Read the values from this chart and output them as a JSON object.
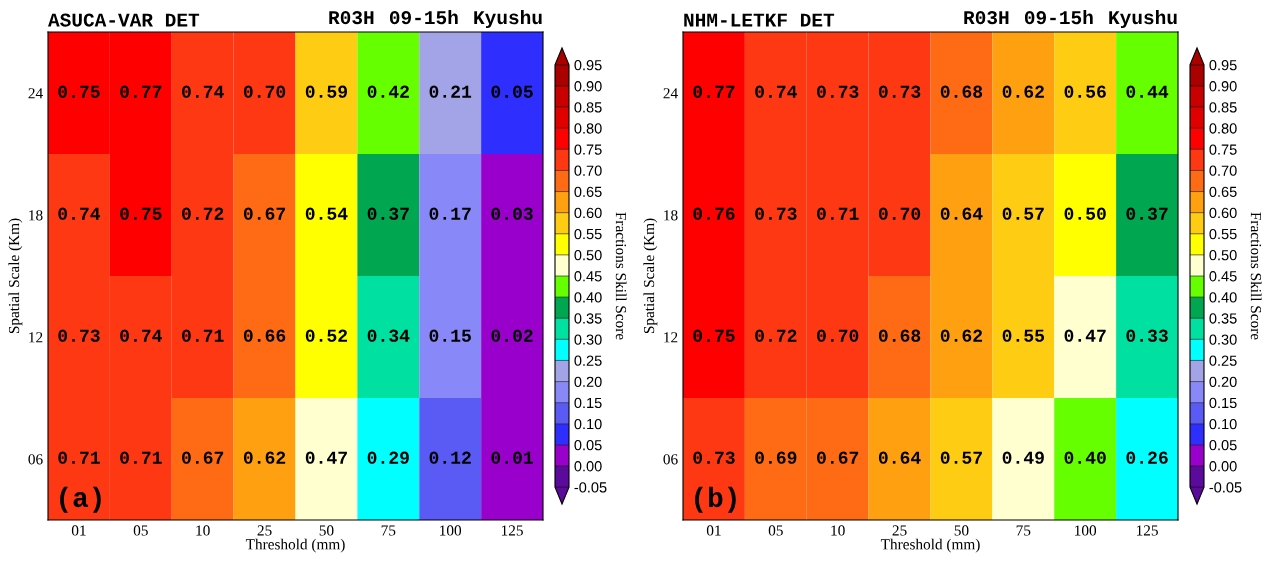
{
  "chart_data": [
    {
      "type": "heatmap",
      "title": "ASUCA-VAR DET",
      "annotations": [
        "R03H",
        "09-15h",
        "Kyushu",
        "(a)"
      ],
      "xlabel": "Threshold (mm)",
      "ylabel": "Spatial Scale (Km)",
      "clabel": "Fractions Skill Score",
      "categories": [
        "01",
        "05",
        "10",
        "25",
        "50",
        "75",
        "100",
        "125"
      ],
      "y_categories": [
        "24",
        "18",
        "12",
        "06"
      ],
      "cells": [
        [
          0.75,
          0.77,
          0.74,
          0.7,
          0.59,
          0.42,
          0.21,
          0.05
        ],
        [
          0.74,
          0.75,
          0.72,
          0.67,
          0.54,
          0.37,
          0.17,
          0.03
        ],
        [
          0.73,
          0.74,
          0.71,
          0.66,
          0.52,
          0.34,
          0.15,
          0.02
        ],
        [
          0.71,
          0.71,
          0.67,
          0.62,
          0.47,
          0.29,
          0.12,
          0.01
        ]
      ],
      "cell_labels": [
        [
          "0.75",
          "0.77",
          "0.74",
          "0.70",
          "0.59",
          "0.42",
          "0.21",
          "0.05"
        ],
        [
          "0.74",
          "0.75",
          "0.72",
          "0.67",
          "0.54",
          "0.37",
          "0.17",
          "0.03"
        ],
        [
          "0.73",
          "0.74",
          "0.71",
          "0.66",
          "0.52",
          "0.34",
          "0.15",
          "0.02"
        ],
        [
          "0.71",
          "0.71",
          "0.67",
          "0.62",
          "0.47",
          "0.29",
          "0.12",
          "0.01"
        ]
      ],
      "clim": [
        -0.05,
        0.95
      ],
      "cticks": [
        {
          "value": -0.05,
          "label": "-0.05"
        },
        {
          "value": 0.0,
          "label": "0.00"
        },
        {
          "value": 0.05,
          "label": "0.05"
        },
        {
          "value": 0.1,
          "label": "0.10"
        },
        {
          "value": 0.15,
          "label": "0.15"
        },
        {
          "value": 0.2,
          "label": "0.20"
        },
        {
          "value": 0.25,
          "label": "0.25"
        },
        {
          "value": 0.3,
          "label": "0.30"
        },
        {
          "value": 0.35,
          "label": "0.35"
        },
        {
          "value": 0.4,
          "label": "0.40"
        },
        {
          "value": 0.45,
          "label": "0.45"
        },
        {
          "value": 0.5,
          "label": "0.50"
        },
        {
          "value": 0.55,
          "label": "0.55"
        },
        {
          "value": 0.6,
          "label": "0.60"
        },
        {
          "value": 0.65,
          "label": "0.65"
        },
        {
          "value": 0.7,
          "label": "0.70"
        },
        {
          "value": 0.75,
          "label": "0.75"
        },
        {
          "value": 0.8,
          "label": "0.80"
        },
        {
          "value": 0.85,
          "label": "0.85"
        },
        {
          "value": 0.9,
          "label": "0.90"
        },
        {
          "value": 0.95,
          "label": "0.95"
        }
      ],
      "colors": [
        "#5c0a9c",
        "#9a00cc",
        "#2e2eff",
        "#5a5af5",
        "#8888f8",
        "#a3a3e8",
        "#00ffff",
        "#00e0a0",
        "#00a650",
        "#66ff00",
        "#ffffd0",
        "#ffff00",
        "#ffcc14",
        "#ffa010",
        "#ff6a14",
        "#ff3814",
        "#ff0000",
        "#e00000",
        "#c80000",
        "#aa0000"
      ]
    },
    {
      "type": "heatmap",
      "title": "NHM-LETKF DET",
      "annotations": [
        "R03H",
        "09-15h",
        "Kyushu",
        "(b)"
      ],
      "xlabel": "Threshold (mm)",
      "ylabel": "Spatial Scale (Km)",
      "clabel": "Fractions Skill Score",
      "categories": [
        "01",
        "05",
        "10",
        "25",
        "50",
        "75",
        "100",
        "125"
      ],
      "y_categories": [
        "24",
        "18",
        "12",
        "06"
      ],
      "cells": [
        [
          0.77,
          0.74,
          0.73,
          0.73,
          0.68,
          0.62,
          0.56,
          0.44
        ],
        [
          0.76,
          0.73,
          0.71,
          0.7,
          0.64,
          0.57,
          0.5,
          0.37
        ],
        [
          0.75,
          0.72,
          0.7,
          0.68,
          0.62,
          0.55,
          0.47,
          0.33
        ],
        [
          0.73,
          0.69,
          0.67,
          0.64,
          0.57,
          0.49,
          0.4,
          0.26
        ]
      ],
      "cell_labels": [
        [
          "0.77",
          "0.74",
          "0.73",
          "0.73",
          "0.68",
          "0.62",
          "0.56",
          "0.44"
        ],
        [
          "0.76",
          "0.73",
          "0.71",
          "0.70",
          "0.64",
          "0.57",
          "0.50",
          "0.37"
        ],
        [
          "0.75",
          "0.72",
          "0.70",
          "0.68",
          "0.62",
          "0.55",
          "0.47",
          "0.33"
        ],
        [
          "0.73",
          "0.69",
          "0.67",
          "0.64",
          "0.57",
          "0.49",
          "0.40",
          "0.26"
        ]
      ],
      "clim": [
        -0.05,
        0.95
      ],
      "cticks": [
        {
          "value": -0.05,
          "label": "-0.05"
        },
        {
          "value": 0.0,
          "label": "0.00"
        },
        {
          "value": 0.05,
          "label": "0.05"
        },
        {
          "value": 0.1,
          "label": "0.10"
        },
        {
          "value": 0.15,
          "label": "0.15"
        },
        {
          "value": 0.2,
          "label": "0.20"
        },
        {
          "value": 0.25,
          "label": "0.25"
        },
        {
          "value": 0.3,
          "label": "0.30"
        },
        {
          "value": 0.35,
          "label": "0.35"
        },
        {
          "value": 0.4,
          "label": "0.40"
        },
        {
          "value": 0.45,
          "label": "0.45"
        },
        {
          "value": 0.5,
          "label": "0.50"
        },
        {
          "value": 0.55,
          "label": "0.55"
        },
        {
          "value": 0.6,
          "label": "0.60"
        },
        {
          "value": 0.65,
          "label": "0.65"
        },
        {
          "value": 0.7,
          "label": "0.70"
        },
        {
          "value": 0.75,
          "label": "0.75"
        },
        {
          "value": 0.8,
          "label": "0.80"
        },
        {
          "value": 0.85,
          "label": "0.85"
        },
        {
          "value": 0.9,
          "label": "0.90"
        },
        {
          "value": 0.95,
          "label": "0.95"
        }
      ],
      "colors": [
        "#5c0a9c",
        "#9a00cc",
        "#2e2eff",
        "#5a5af5",
        "#8888f8",
        "#a3a3e8",
        "#00ffff",
        "#00e0a0",
        "#00a650",
        "#66ff00",
        "#ffffd0",
        "#ffff00",
        "#ffcc14",
        "#ffa010",
        "#ff6a14",
        "#ff3814",
        "#ff0000",
        "#e00000",
        "#c80000",
        "#aa0000"
      ]
    }
  ]
}
